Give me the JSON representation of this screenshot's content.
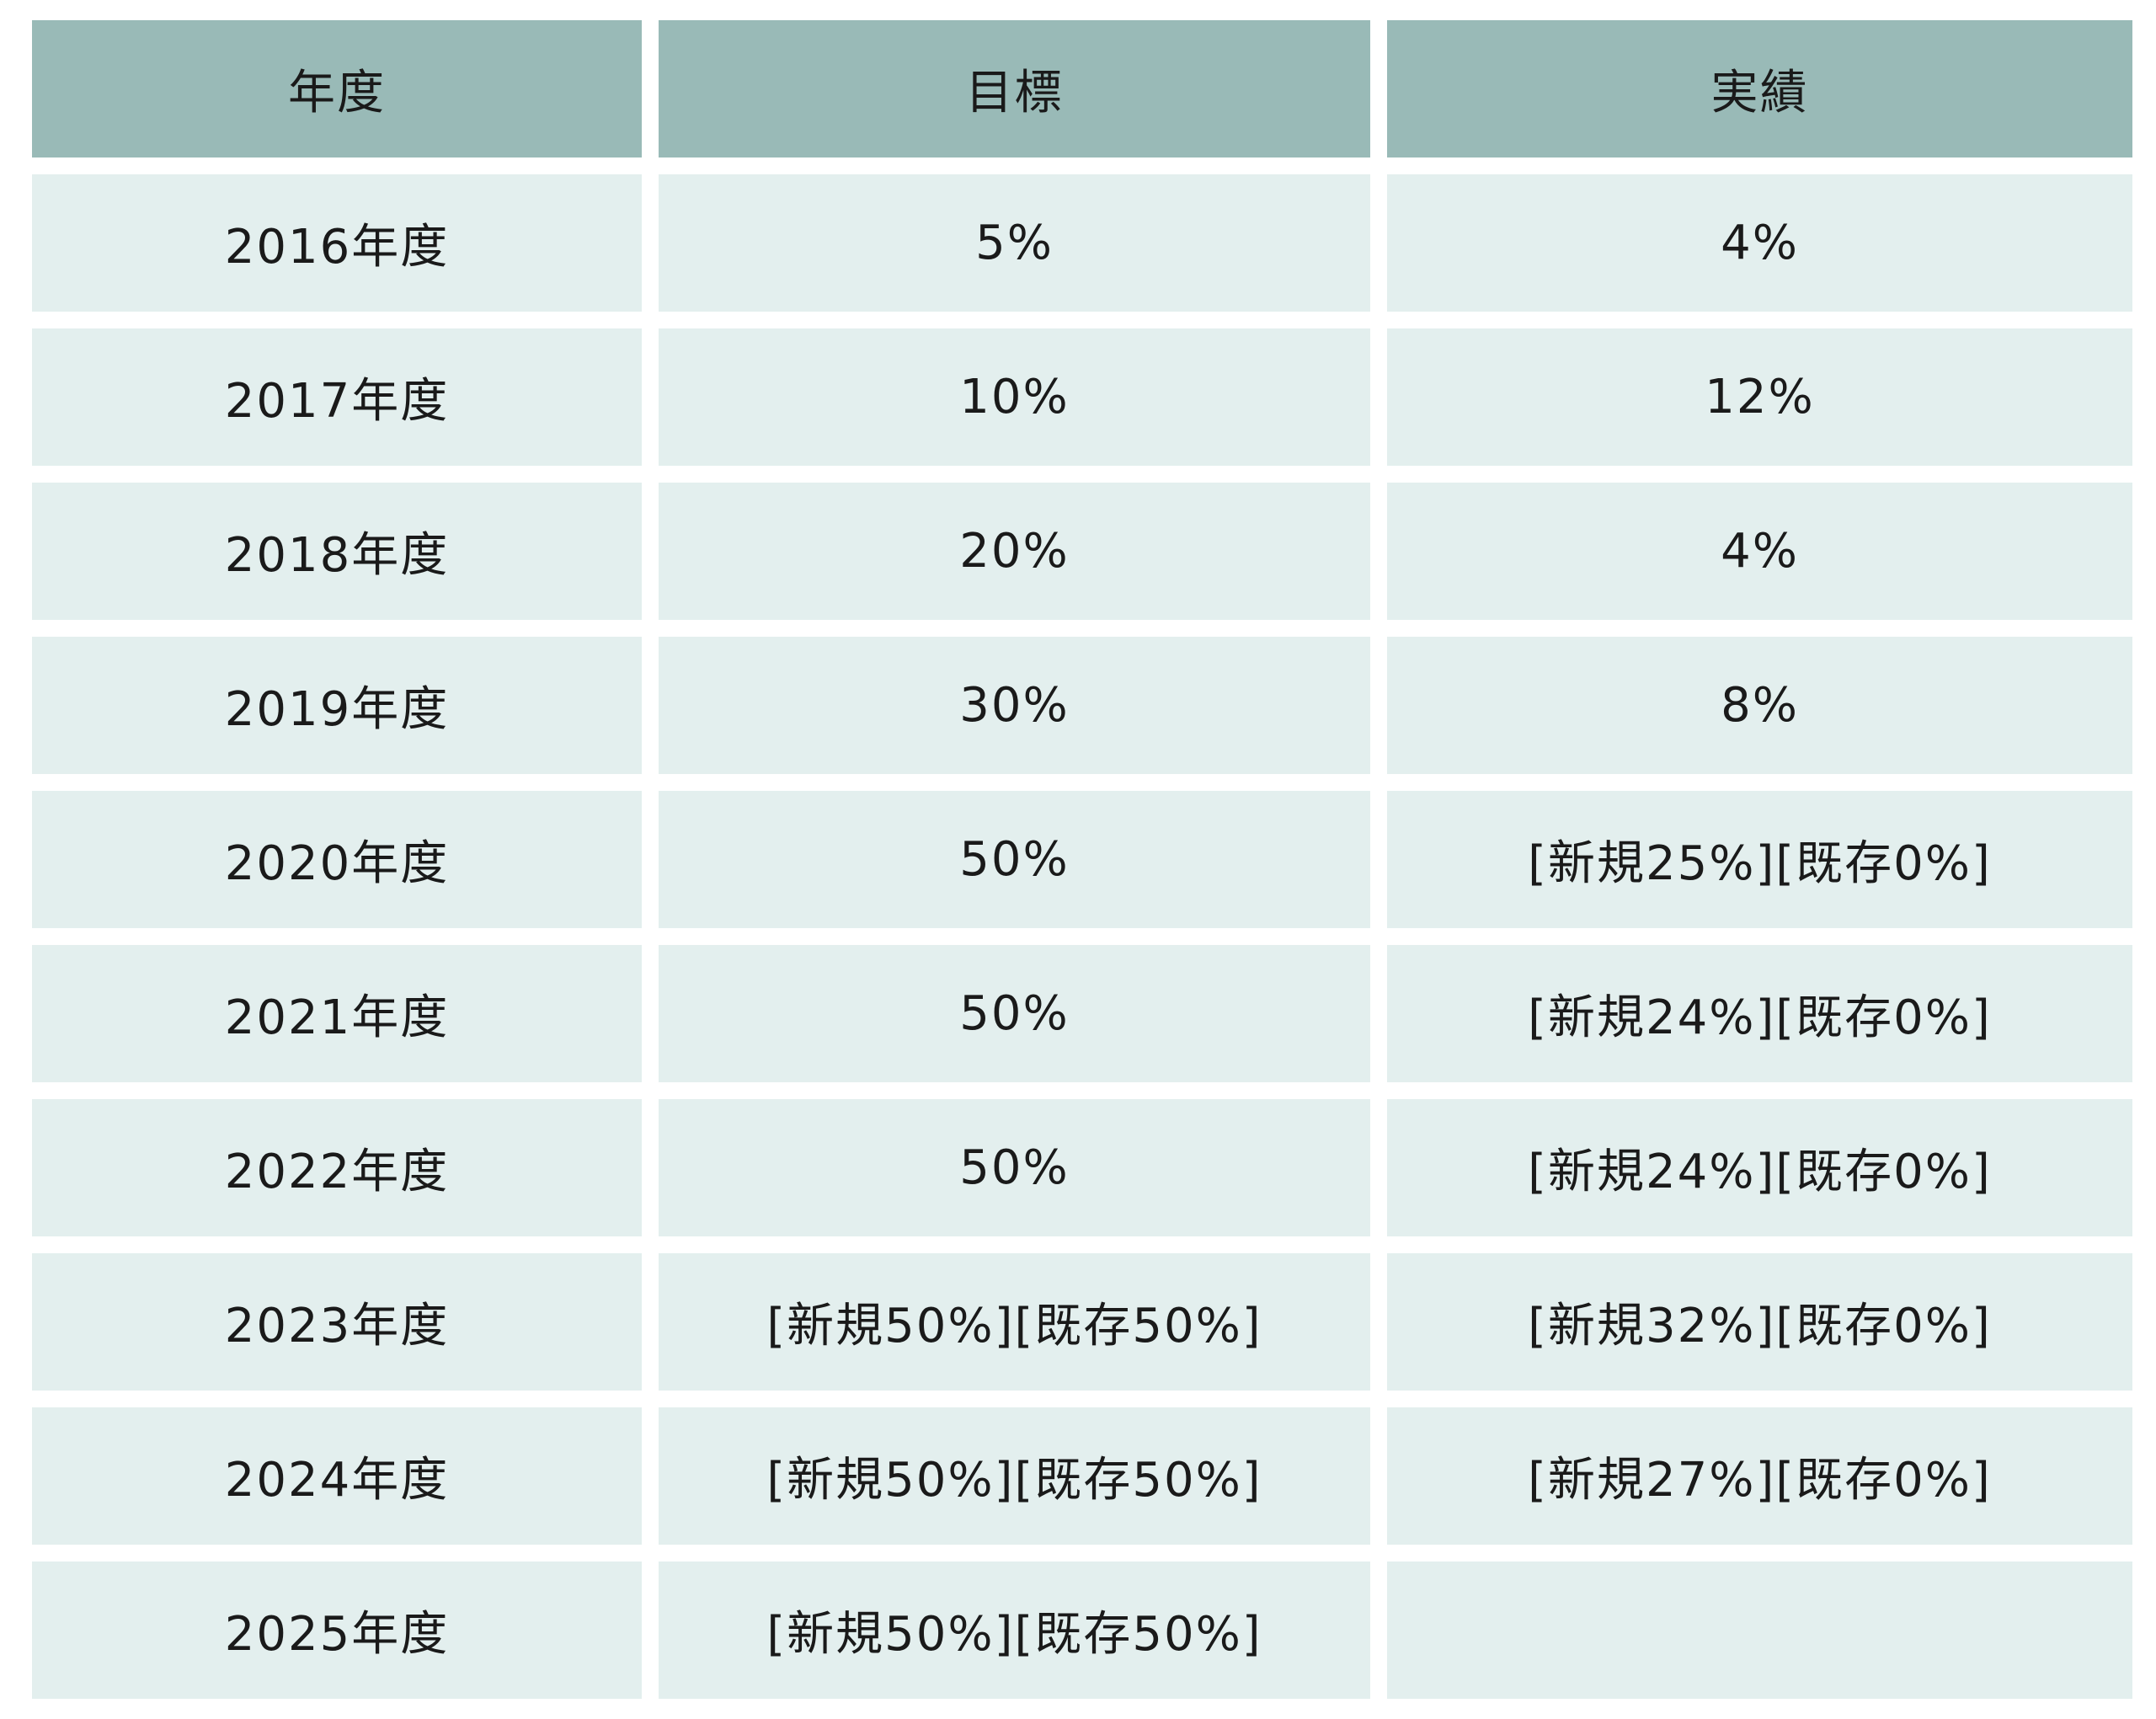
{
  "table": {
    "headers": [
      "年度",
      "目標",
      "実績"
    ],
    "rows": [
      [
        "2016年度",
        "5%",
        "4%"
      ],
      [
        "2017年度",
        "10%",
        "12%"
      ],
      [
        "2018年度",
        "20%",
        "4%"
      ],
      [
        "2019年度",
        "30%",
        "8%"
      ],
      [
        "2020年度",
        "50%",
        "[新規25%][既存0%]"
      ],
      [
        "2021年度",
        "50%",
        "[新規24%][既存0%]"
      ],
      [
        "2022年度",
        "50%",
        "[新規24%][既存0%]"
      ],
      [
        "2023年度",
        "[新規50%][既存50%]",
        "[新規32%][既存0%]"
      ],
      [
        "2024年度",
        "[新規50%][既存50%]",
        "[新規27%][既存0%]"
      ],
      [
        "2025年度",
        "[新規50%][既存50%]",
        ""
      ]
    ]
  },
  "colors": {
    "header_bg": "#99bab7",
    "row_bg": "#e3efee",
    "text": "#1a1a1a"
  }
}
